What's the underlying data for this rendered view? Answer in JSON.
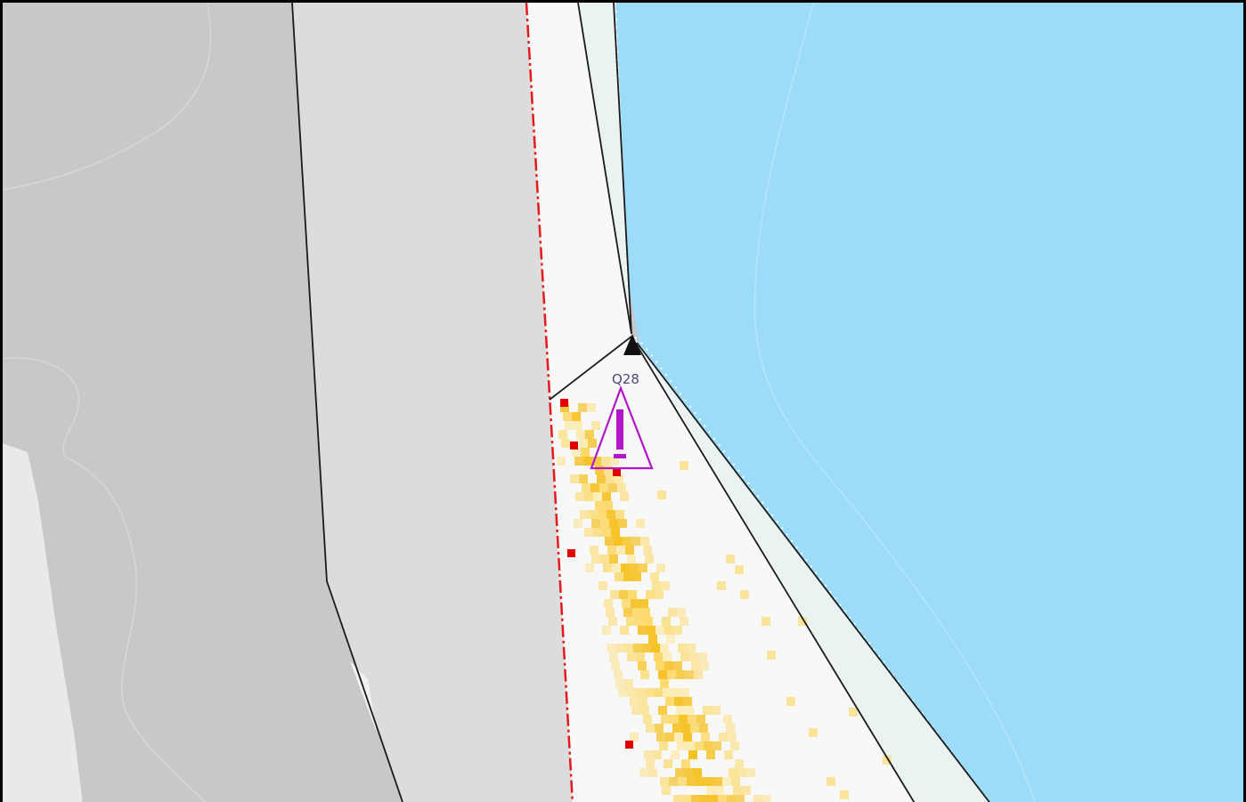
{
  "map": {
    "colors": {
      "water": "#9cdcf8",
      "land_outer": "#c8c8c8",
      "land_inner": "#dcdcdc",
      "coastal_strip": "#f8f8f8",
      "boundary_line": "#e41a1c",
      "route_line": "#1a1a1a",
      "heat_low": "#fde9a6",
      "heat_mid": "#fcd34d",
      "heat_high": "#f5b800",
      "hotspot": "#e00000",
      "warning": "#b515c9"
    },
    "marker": {
      "label": "Q28",
      "icon": "triangle-down-icon"
    },
    "warning": {
      "icon": "warning-triangle-icon",
      "glyph": "!"
    }
  }
}
